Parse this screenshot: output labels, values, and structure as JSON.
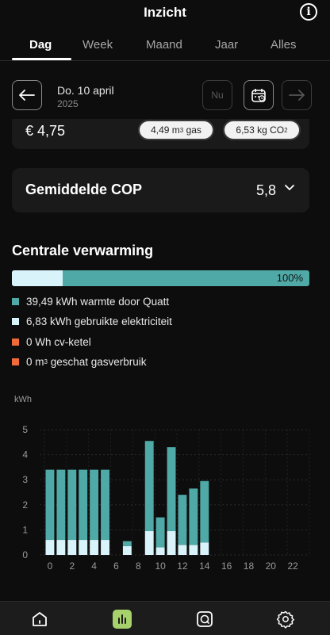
{
  "header": {
    "title": "Inzicht",
    "info_icon_glyph": "i"
  },
  "tabs": [
    {
      "label": "Dag",
      "active": true
    },
    {
      "label": "Week",
      "active": false
    },
    {
      "label": "Maand",
      "active": false
    },
    {
      "label": "Jaar",
      "active": false
    },
    {
      "label": "Alles",
      "active": false
    }
  ],
  "date_nav": {
    "date": "Do. 10 april",
    "year": "2025",
    "now_label": "Nu"
  },
  "cost": {
    "value": "€ 4,75",
    "gas_amount": "4,49",
    "gas_unit": "m",
    "gas_unit_sup": "3",
    "gas_label": "gas",
    "co2_amount": "6,53",
    "co2_unit": "kg",
    "co2_label": "CO",
    "co2_sub": "2"
  },
  "cop": {
    "label": "Gemiddelde COP",
    "value": "5,8"
  },
  "central_heating": {
    "title": "Centrale verwarming",
    "progress_label": "100%",
    "electricity_fraction": 0.17,
    "legend": [
      {
        "text": "39,49 kWh warmte door Quatt",
        "color": "#4fa9a6"
      },
      {
        "text": "6,83 kWh gebruikte elektriciteit",
        "color": "#d9f3fa"
      },
      {
        "text": "0 Wh cv-ketel",
        "color": "#f06a3a"
      },
      {
        "text_pre": "0 m",
        "text_sup": "3",
        "text_post": " geschat gasverbruik",
        "color": "#f06a3a"
      }
    ]
  },
  "chart_data": {
    "type": "bar",
    "ylabel": "kWh",
    "ylim": [
      0,
      5
    ],
    "yticks": [
      "0",
      "1",
      "2",
      "3",
      "4",
      "5"
    ],
    "xticks": [
      "0",
      "2",
      "4",
      "6",
      "8",
      "10",
      "12",
      "14",
      "16",
      "18",
      "20",
      "22"
    ],
    "x": [
      0,
      1,
      2,
      3,
      4,
      5,
      6,
      7,
      8,
      9,
      10,
      11,
      12,
      13,
      14,
      15,
      16,
      17,
      18,
      19,
      20,
      21,
      22,
      23
    ],
    "series": [
      {
        "values": [
          2.8,
          2.8,
          2.8,
          2.8,
          2.8,
          2.8,
          0,
          0.2,
          0,
          3.6,
          1.2,
          3.35,
          2.0,
          2.25,
          2.45,
          0,
          0,
          0,
          0,
          0,
          0,
          0,
          0,
          0
        ],
        "color": "#4fa9a6"
      },
      {
        "values": [
          0.6,
          0.6,
          0.6,
          0.6,
          0.6,
          0.6,
          0,
          0.35,
          0,
          0.95,
          0.3,
          0.95,
          0.4,
          0.4,
          0.5,
          0,
          0,
          0,
          0,
          0,
          0,
          0,
          0,
          0
        ],
        "color": "#d9f3fa"
      }
    ]
  },
  "bottom_nav": [
    {
      "name": "home",
      "active": false
    },
    {
      "name": "insights",
      "active": true
    },
    {
      "name": "chat",
      "active": false
    },
    {
      "name": "settings",
      "active": false
    }
  ],
  "colors": {
    "accent": "#4fa9a6",
    "electricity": "#d9f3fa",
    "boiler": "#f06a3a",
    "nav_active": "#a6d16b"
  }
}
